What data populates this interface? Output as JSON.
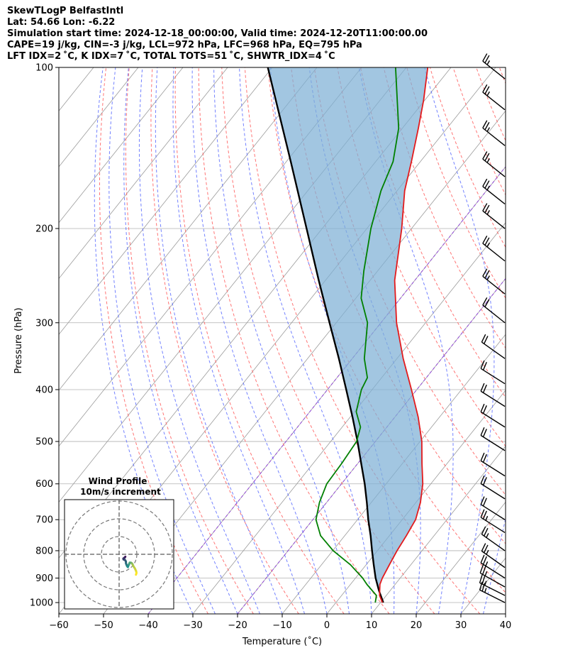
{
  "header": {
    "line1": "SkewTLogP BelfastIntl",
    "line2": "Lat: 54.66   Lon: -6.22",
    "line3": "Simulation start time: 2024-12-18_00:00:00, Valid time: 2024-12-20T11:00:00.00",
    "line4": "CAPE=19 j/kg, CIN=-3 j/kg, LCL=972 hPa, LFC=968 hPa, EQ=795 hPa",
    "line5": "LFT IDX=2 ˚C, K IDX=7 ˚C, TOTAL TOTS=51 ˚C, SHWTR_IDX=4 ˚C"
  },
  "chart_data": {
    "type": "skew-t log-p",
    "xlabel": "Temperature (˚C)",
    "ylabel": "Pressure (hPa)",
    "xlim": [
      -60,
      40
    ],
    "ylim": [
      1050,
      100
    ],
    "y_scale": "log",
    "x_ticks": [
      "−60",
      "−50",
      "−40",
      "−30",
      "−20",
      "−10",
      "0",
      "10",
      "20",
      "30",
      "40"
    ],
    "y_ticks": [
      "100",
      "200",
      "300",
      "400",
      "500",
      "600",
      "700",
      "800",
      "900",
      "1000"
    ],
    "x_tick_values": [
      -60,
      -50,
      -40,
      -30,
      -20,
      -10,
      0,
      10,
      20,
      30,
      40
    ],
    "y_tick_values": [
      100,
      200,
      300,
      400,
      500,
      600,
      700,
      800,
      900,
      1000
    ],
    "grid": true,
    "colors": {
      "temperature": "#e31a1c",
      "dewpoint": "#008000",
      "parcel": "#000000",
      "cape_fill": "#7eb0d5",
      "dry_adiabat": "#ff6666",
      "moist_adiabat": "#5a6cff",
      "isotherm": "#999999",
      "hodograph_start": "#440154",
      "hodograph_end": "#fde725"
    },
    "temperature_profile": [
      {
        "p": 1000,
        "t": 10.4
      },
      {
        "p": 970,
        "t": 8.5
      },
      {
        "p": 925,
        "t": 6.6
      },
      {
        "p": 900,
        "t": 6.0
      },
      {
        "p": 850,
        "t": 5.2
      },
      {
        "p": 800,
        "t": 4.4
      },
      {
        "p": 750,
        "t": 3.8
      },
      {
        "p": 700,
        "t": 3.0
      },
      {
        "p": 650,
        "t": 1.0
      },
      {
        "p": 600,
        "t": -1.8
      },
      {
        "p": 550,
        "t": -5.6
      },
      {
        "p": 500,
        "t": -9.6
      },
      {
        "p": 450,
        "t": -14.8
      },
      {
        "p": 400,
        "t": -21.2
      },
      {
        "p": 350,
        "t": -28.6
      },
      {
        "p": 300,
        "t": -36.5
      },
      {
        "p": 250,
        "t": -44.5
      },
      {
        "p": 200,
        "t": -52.2
      },
      {
        "p": 170,
        "t": -58.3
      },
      {
        "p": 150,
        "t": -62.0
      },
      {
        "p": 130,
        "t": -66.4
      },
      {
        "p": 115,
        "t": -70.3
      },
      {
        "p": 100,
        "t": -75.2
      }
    ],
    "dewpoint_profile": [
      {
        "p": 1000,
        "t": 8.8
      },
      {
        "p": 970,
        "t": 7.8
      },
      {
        "p": 925,
        "t": 3.7
      },
      {
        "p": 900,
        "t": 1.6
      },
      {
        "p": 850,
        "t": -3.5
      },
      {
        "p": 800,
        "t": -9.9
      },
      {
        "p": 750,
        "t": -15.4
      },
      {
        "p": 700,
        "t": -19.3
      },
      {
        "p": 650,
        "t": -21.6
      },
      {
        "p": 600,
        "t": -23.3
      },
      {
        "p": 550,
        "t": -23.6
      },
      {
        "p": 500,
        "t": -24.2
      },
      {
        "p": 470,
        "t": -25.9
      },
      {
        "p": 440,
        "t": -29.6
      },
      {
        "p": 400,
        "t": -32.4
      },
      {
        "p": 380,
        "t": -33.2
      },
      {
        "p": 350,
        "t": -37.3
      },
      {
        "p": 300,
        "t": -43.0
      },
      {
        "p": 270,
        "t": -48.8
      },
      {
        "p": 240,
        "t": -53.1
      },
      {
        "p": 200,
        "t": -59.1
      },
      {
        "p": 170,
        "t": -63.6
      },
      {
        "p": 150,
        "t": -66.1
      },
      {
        "p": 130,
        "t": -70.8
      },
      {
        "p": 100,
        "t": -82.4
      }
    ],
    "parcel_profile": [
      {
        "p": 1000,
        "t": 10.6
      },
      {
        "p": 950,
        "t": 7.5
      },
      {
        "p": 900,
        "t": 4.5
      },
      {
        "p": 850,
        "t": 1.7
      },
      {
        "p": 800,
        "t": -1.2
      },
      {
        "p": 750,
        "t": -4.2
      },
      {
        "p": 700,
        "t": -7.6
      },
      {
        "p": 650,
        "t": -11.0
      },
      {
        "p": 600,
        "t": -14.8
      },
      {
        "p": 550,
        "t": -19.2
      },
      {
        "p": 500,
        "t": -24.0
      },
      {
        "p": 450,
        "t": -29.5
      },
      {
        "p": 400,
        "t": -35.8
      },
      {
        "p": 350,
        "t": -43.0
      },
      {
        "p": 300,
        "t": -51.5
      },
      {
        "p": 250,
        "t": -61.5
      },
      {
        "p": 200,
        "t": -73.5
      },
      {
        "p": 150,
        "t": -89.0
      },
      {
        "p": 100,
        "t": -111.0
      }
    ],
    "wind_barbs": [
      {
        "p": 1000,
        "speed_kt": 25,
        "dir_deg": 280
      },
      {
        "p": 970,
        "speed_kt": 25,
        "dir_deg": 280
      },
      {
        "p": 935,
        "speed_kt": 25,
        "dir_deg": 285
      },
      {
        "p": 900,
        "speed_kt": 25,
        "dir_deg": 290
      },
      {
        "p": 860,
        "speed_kt": 25,
        "dir_deg": 295
      },
      {
        "p": 800,
        "speed_kt": 25,
        "dir_deg": 295
      },
      {
        "p": 740,
        "speed_kt": 25,
        "dir_deg": 290
      },
      {
        "p": 700,
        "speed_kt": 20,
        "dir_deg": 290
      },
      {
        "p": 640,
        "speed_kt": 20,
        "dir_deg": 290
      },
      {
        "p": 580,
        "speed_kt": 20,
        "dir_deg": 290
      },
      {
        "p": 520,
        "speed_kt": 20,
        "dir_deg": 290
      },
      {
        "p": 470,
        "speed_kt": 20,
        "dir_deg": 290
      },
      {
        "p": 430,
        "speed_kt": 20,
        "dir_deg": 290
      },
      {
        "p": 390,
        "speed_kt": 20,
        "dir_deg": 290
      },
      {
        "p": 350,
        "speed_kt": 20,
        "dir_deg": 295
      },
      {
        "p": 300,
        "speed_kt": 20,
        "dir_deg": 300
      },
      {
        "p": 265,
        "speed_kt": 25,
        "dir_deg": 300
      },
      {
        "p": 230,
        "speed_kt": 25,
        "dir_deg": 300
      },
      {
        "p": 200,
        "speed_kt": 25,
        "dir_deg": 300
      },
      {
        "p": 180,
        "speed_kt": 25,
        "dir_deg": 300
      },
      {
        "p": 160,
        "speed_kt": 25,
        "dir_deg": 300
      },
      {
        "p": 140,
        "speed_kt": 25,
        "dir_deg": 300
      },
      {
        "p": 120,
        "speed_kt": 25,
        "dir_deg": 300
      },
      {
        "p": 105,
        "speed_kt": 25,
        "dir_deg": 300
      }
    ],
    "hodograph": {
      "title_line1": "Wind Profile",
      "title_line2": "10m/s increment",
      "ring_increment_ms": 10,
      "points": [
        {
          "u": 9.5,
          "v": -11.5
        },
        {
          "u": 9.8,
          "v": -10.5
        },
        {
          "u": 9.6,
          "v": -9.5
        },
        {
          "u": 8.9,
          "v": -8.0
        },
        {
          "u": 8.0,
          "v": -6.6
        },
        {
          "u": 7.6,
          "v": -5.7
        },
        {
          "u": 7.3,
          "v": -5.2
        },
        {
          "u": 6.8,
          "v": -4.8
        },
        {
          "u": 6.0,
          "v": -4.7
        },
        {
          "u": 5.5,
          "v": -5.8
        },
        {
          "u": 4.9,
          "v": -7.2
        },
        {
          "u": 4.4,
          "v": -6.5
        },
        {
          "u": 3.9,
          "v": -5.2
        },
        {
          "u": 3.8,
          "v": -4.0
        },
        {
          "u": 3.3,
          "v": -3.2
        },
        {
          "u": 2.5,
          "v": -2.9
        },
        {
          "u": 2.4,
          "v": -2.4
        },
        {
          "u": 3.2,
          "v": -1.8
        },
        {
          "u": 3.5,
          "v": -1.4
        }
      ]
    }
  }
}
